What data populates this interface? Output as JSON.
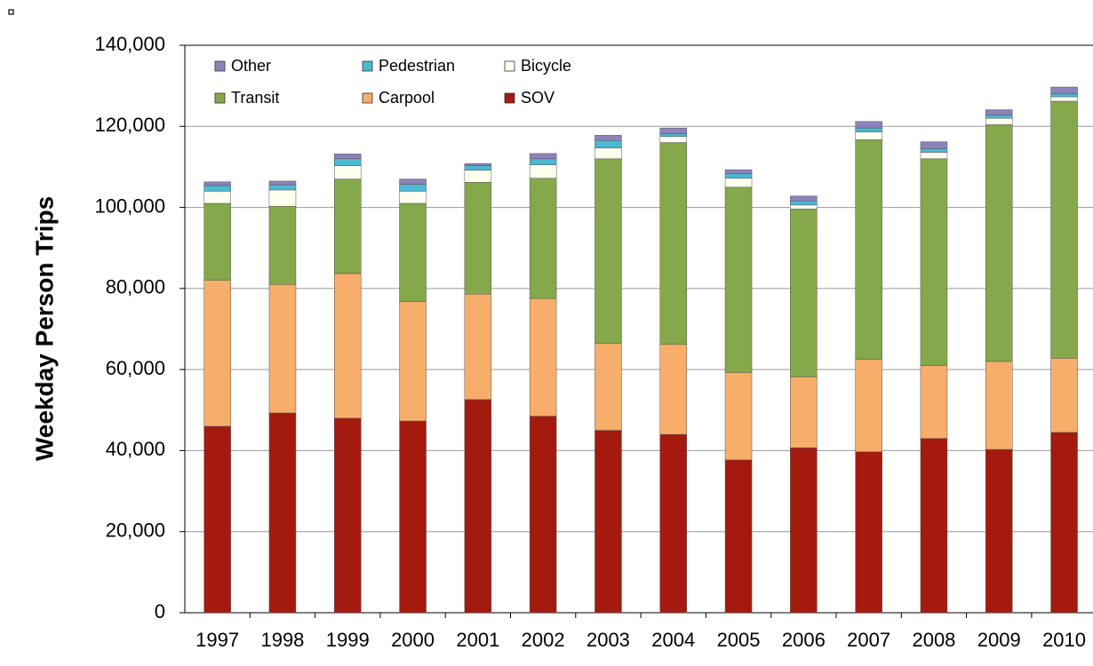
{
  "chart_data": {
    "type": "stacked-bar",
    "y_label": "Weekday Person Trips",
    "categories": [
      "1997",
      "1998",
      "1999",
      "2000",
      "2001",
      "2002",
      "2003",
      "2004",
      "2005",
      "2006",
      "2007",
      "2008",
      "2009",
      "2010"
    ],
    "series": [
      {
        "name": "SOV",
        "color": "#a51a0e",
        "values": [
          46000,
          49300,
          48000,
          47300,
          52600,
          48500,
          45000,
          44000,
          37700,
          40700,
          39700,
          43000,
          40300,
          44500
        ]
      },
      {
        "name": "Carpool",
        "color": "#f7ae6b",
        "values": [
          36000,
          31700,
          35700,
          29500,
          26000,
          29000,
          21500,
          22200,
          21600,
          17500,
          22800,
          18000,
          21700,
          18300
        ]
      },
      {
        "name": "Transit",
        "color": "#84a84a",
        "values": [
          19000,
          19300,
          23300,
          24200,
          27600,
          29700,
          45500,
          49800,
          45700,
          41400,
          54200,
          51000,
          58400,
          63400
        ]
      },
      {
        "name": "Bicycle",
        "color": "#fffff0",
        "values": [
          3000,
          4000,
          3300,
          3000,
          3000,
          3300,
          2700,
          1500,
          2200,
          1000,
          1900,
          1600,
          1600,
          1100
        ]
      },
      {
        "name": "Pedestrian",
        "color": "#4cb8d2",
        "values": [
          1400,
          1300,
          1700,
          1700,
          1100,
          1500,
          1800,
          700,
          1100,
          1000,
          1000,
          900,
          800,
          700
        ]
      },
      {
        "name": "Other",
        "color": "#8d82ba",
        "values": [
          900,
          900,
          1200,
          1300,
          500,
          1300,
          1300,
          1400,
          1000,
          1200,
          1600,
          1700,
          1300,
          1700
        ]
      }
    ],
    "ylim": [
      0,
      140000
    ],
    "yticks": [
      0,
      {
        "value": 20000,
        "label": "20,000"
      },
      {
        "value": 40000,
        "label": "40,000"
      },
      {
        "value": 60000,
        "label": "60,000"
      },
      {
        "value": 80000,
        "label": "80,000"
      },
      {
        "value": 100000,
        "label": "100,000"
      },
      {
        "value": 120000,
        "label": "120,000"
      },
      {
        "value": 140000,
        "label": "140,000"
      }
    ],
    "grid": true
  }
}
